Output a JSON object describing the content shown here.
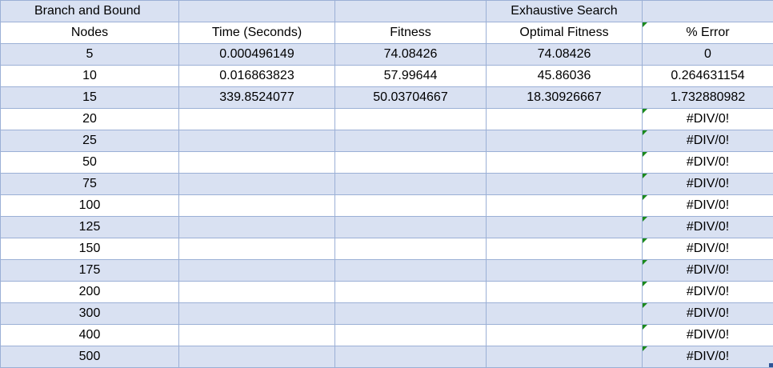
{
  "header_row": {
    "title_left": "Branch and Bound",
    "title_right": "Exhaustive Search"
  },
  "columns": [
    "Nodes",
    "Time (Seconds)",
    "Fitness",
    "Optimal Fitness",
    "% Error"
  ],
  "rows": [
    {
      "nodes": "5",
      "time": "0.000496149",
      "fitness": "74.08426",
      "optimal": "74.08426",
      "error": "0"
    },
    {
      "nodes": "10",
      "time": "0.016863823",
      "fitness": "57.99644",
      "optimal": "45.86036",
      "error": "0.264631154"
    },
    {
      "nodes": "15",
      "time": "339.8524077",
      "fitness": "50.03704667",
      "optimal": "18.30926667",
      "error": "1.732880982"
    },
    {
      "nodes": "20",
      "time": "",
      "fitness": "",
      "optimal": "",
      "error": "#DIV/0!"
    },
    {
      "nodes": "25",
      "time": "",
      "fitness": "",
      "optimal": "",
      "error": "#DIV/0!"
    },
    {
      "nodes": "50",
      "time": "",
      "fitness": "",
      "optimal": "",
      "error": "#DIV/0!"
    },
    {
      "nodes": "75",
      "time": "",
      "fitness": "",
      "optimal": "",
      "error": "#DIV/0!"
    },
    {
      "nodes": "100",
      "time": "",
      "fitness": "",
      "optimal": "",
      "error": "#DIV/0!"
    },
    {
      "nodes": "125",
      "time": "",
      "fitness": "",
      "optimal": "",
      "error": "#DIV/0!"
    },
    {
      "nodes": "150",
      "time": "",
      "fitness": "",
      "optimal": "",
      "error": "#DIV/0!"
    },
    {
      "nodes": "175",
      "time": "",
      "fitness": "",
      "optimal": "",
      "error": "#DIV/0!"
    },
    {
      "nodes": "200",
      "time": "",
      "fitness": "",
      "optimal": "",
      "error": "#DIV/0!"
    },
    {
      "nodes": "300",
      "time": "",
      "fitness": "",
      "optimal": "",
      "error": "#DIV/0!"
    },
    {
      "nodes": "400",
      "time": "",
      "fitness": "",
      "optimal": "",
      "error": "#DIV/0!"
    },
    {
      "nodes": "500",
      "time": "",
      "fitness": "",
      "optimal": "",
      "error": "#DIV/0!"
    }
  ],
  "colors": {
    "band_fill": "#d9e1f2",
    "grid_line": "#9bb0d6",
    "error_indicator": "#1b8a1b",
    "selection_handle": "#2f5597"
  },
  "icons": {
    "error_indicator": "error-triangle-icon",
    "fill_handle": "fill-handle"
  }
}
